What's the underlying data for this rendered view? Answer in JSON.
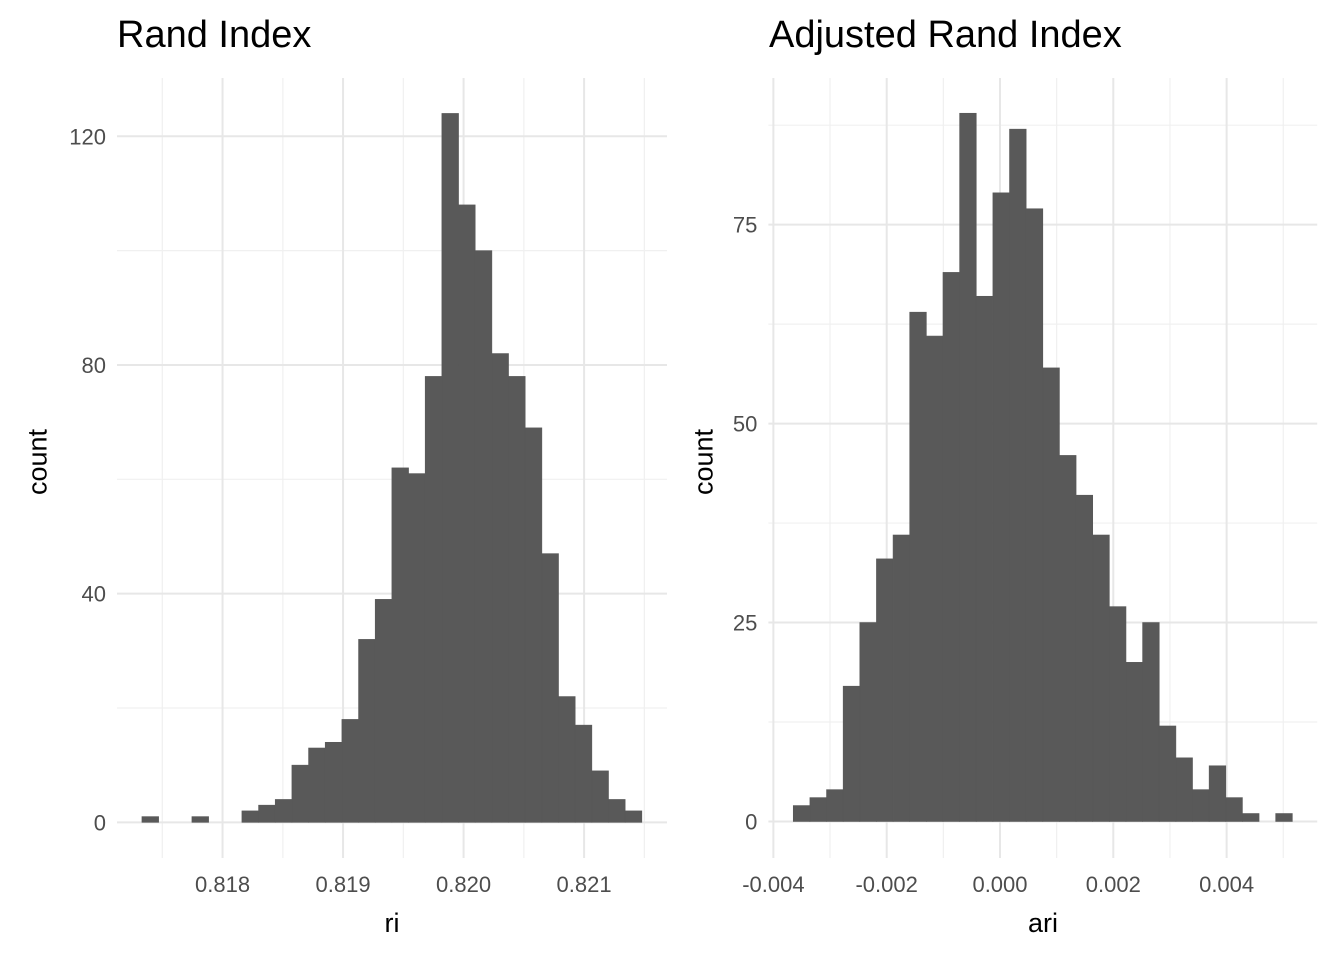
{
  "page": {
    "background_color": "#ffffff",
    "tick_label_color": "#4d4d4d",
    "title_color": "#000000"
  },
  "chart_data": [
    {
      "type": "histogram",
      "title": "Rand Index",
      "xlabel": "ri",
      "ylabel": "count",
      "bar_color": "#595959",
      "grid": {
        "show": true,
        "major_color": "#e7e7e7",
        "minor_color": "#f0f0f0"
      },
      "bin_start": 0.817331,
      "bin_width": 0.00013827,
      "counts": [
        1,
        0,
        0,
        1,
        0,
        0,
        2,
        3,
        4,
        10,
        13,
        14,
        18,
        32,
        39,
        62,
        61,
        78,
        124,
        108,
        100,
        82,
        78,
        69,
        47,
        22,
        17,
        9,
        4,
        2
      ],
      "xlim": [
        0.817124,
        0.821688
      ],
      "ylim": [
        -6.24,
        130.2
      ],
      "x_major_ticks": [
        0.818,
        0.819,
        0.82,
        0.821
      ],
      "x_tick_labels": [
        "0.818",
        "0.819",
        "0.820",
        "0.821"
      ],
      "x_minor_ticks": [
        0.8175,
        0.8185,
        0.8195,
        0.8205,
        0.8215
      ],
      "y_major_ticks": [
        0,
        40,
        80,
        120
      ],
      "y_tick_labels": [
        "0",
        "40",
        "80",
        "120"
      ],
      "y_minor_ticks": [
        20,
        60,
        100
      ]
    },
    {
      "type": "histogram",
      "title": "Adjusted Rand Index",
      "xlabel": "ari",
      "ylabel": "count",
      "bar_color": "#595959",
      "grid": {
        "show": true,
        "major_color": "#e7e7e7",
        "minor_color": "#f0f0f0"
      },
      "bin_start": -0.003649,
      "bin_width": 0.00029363,
      "counts": [
        2,
        3,
        4,
        17,
        25,
        33,
        36,
        64,
        61,
        69,
        89,
        66,
        79,
        87,
        77,
        57,
        46,
        41,
        36,
        27,
        20,
        25,
        12,
        8,
        4,
        7,
        3,
        1,
        0,
        1
      ],
      "xlim": [
        -0.004088,
        0.005599
      ],
      "ylim": [
        -4.59,
        93.43
      ],
      "x_major_ticks": [
        -0.004,
        -0.002,
        0.0,
        0.002,
        0.004
      ],
      "x_tick_labels": [
        "-0.004",
        "-0.002",
        "0.000",
        "0.002",
        "0.004"
      ],
      "x_minor_ticks": [
        -0.003,
        -0.001,
        0.001,
        0.003,
        0.005
      ],
      "y_major_ticks": [
        0,
        25,
        50,
        75
      ],
      "y_tick_labels": [
        "0",
        "25",
        "50",
        "75"
      ],
      "y_minor_ticks": [
        12.5,
        37.5,
        62.5,
        87.5
      ]
    }
  ]
}
